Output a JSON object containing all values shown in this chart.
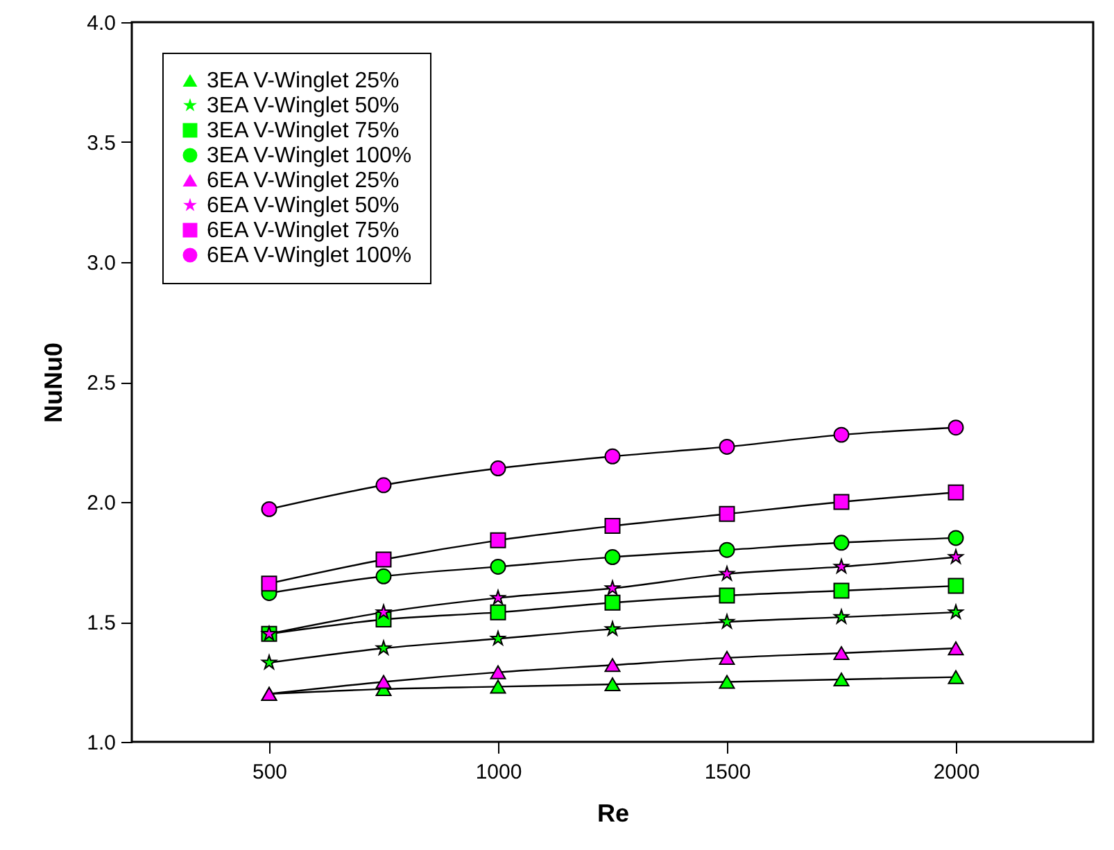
{
  "chart_data": {
    "type": "line",
    "xlabel": "Re",
    "ylabel": "NuNu0",
    "x": [
      500,
      750,
      1000,
      1250,
      1500,
      1750,
      2000
    ],
    "xlim": [
      200,
      2300
    ],
    "xticks": [
      500,
      1000,
      1500,
      2000
    ],
    "ylim": [
      1,
      4
    ],
    "yticks": [
      {
        "value": 1,
        "label": "1.0"
      },
      {
        "value": 1.5,
        "label": "1.5"
      },
      {
        "value": 2,
        "label": "2.0"
      },
      {
        "value": 2.5,
        "label": "2.5"
      },
      {
        "value": 3,
        "label": "3.0"
      },
      {
        "value": 3.5,
        "label": "3.5"
      },
      {
        "value": 4,
        "label": "4.0"
      }
    ],
    "grid": false,
    "legend": "top left",
    "series": [
      {
        "name": "3EA V-Winglet 25%",
        "color": "#00ff00",
        "marker": "triangle",
        "values": [
          1.2,
          1.22,
          1.23,
          1.24,
          1.25,
          1.26,
          1.27
        ]
      },
      {
        "name": "3EA V-Winglet 50%",
        "color": "#00ff00",
        "marker": "star",
        "values": [
          1.33,
          1.39,
          1.43,
          1.47,
          1.5,
          1.52,
          1.54
        ]
      },
      {
        "name": "3EA V-Winglet 75%",
        "color": "#00ff00",
        "marker": "square",
        "values": [
          1.45,
          1.51,
          1.54,
          1.58,
          1.61,
          1.63,
          1.65
        ]
      },
      {
        "name": "3EA V-Winglet 100%",
        "color": "#00ff00",
        "marker": "circle",
        "values": [
          1.62,
          1.69,
          1.73,
          1.77,
          1.8,
          1.83,
          1.85
        ]
      },
      {
        "name": "6EA V-Winglet 25%",
        "color": "#ff00ff",
        "marker": "triangle",
        "values": [
          1.2,
          1.25,
          1.29,
          1.32,
          1.35,
          1.37,
          1.39
        ]
      },
      {
        "name": "6EA V-Winglet 50%",
        "color": "#ff00ff",
        "marker": "star",
        "values": [
          1.45,
          1.54,
          1.6,
          1.64,
          1.7,
          1.73,
          1.77
        ]
      },
      {
        "name": "6EA V-Winglet 75%",
        "color": "#ff00ff",
        "marker": "square",
        "values": [
          1.66,
          1.76,
          1.84,
          1.9,
          1.95,
          2.0,
          2.04
        ]
      },
      {
        "name": "6EA V-Winglet 100%",
        "color": "#ff00ff",
        "marker": "circle",
        "values": [
          1.97,
          2.07,
          2.14,
          2.19,
          2.23,
          2.28,
          2.31
        ]
      }
    ]
  }
}
